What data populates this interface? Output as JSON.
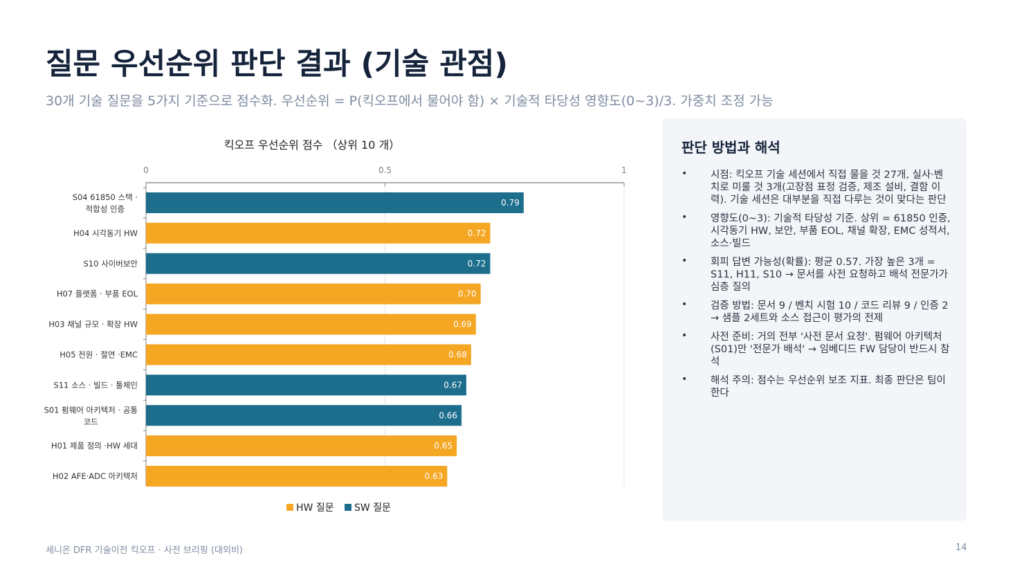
{
  "title": "질문 우선순위 판단 결과 (기술 관점)",
  "subtitle": "30개 기술 질문을 5가지 기준으로 점수화. 우선순위 = P(킥오프에서 물어야 함) × 기술적 타당성 영향도(0~3)/3. 가중치 조정 가능",
  "colors": {
    "hw": "#f5a623",
    "sw": "#1c6e8c"
  },
  "chart_data": {
    "type": "bar",
    "orientation": "horizontal",
    "title": "킥오프 우선순위 점수 （상위 10 개）",
    "xlim": [
      0,
      1
    ],
    "xticks": [
      "0",
      "0.5",
      "1"
    ],
    "grid": true,
    "legend_position": "bottom",
    "legend": [
      {
        "label": "HW 질문",
        "color": "#f5a623"
      },
      {
        "label": "SW 질문",
        "color": "#1c6e8c"
      }
    ],
    "categories": [
      "S04 61850 스택 · 적합성 인증",
      "H04 시각동기 HW",
      "S10 사이버보안",
      "H07 플랫폼 · 부품 EOL",
      "H03 채널 규모 · 확장 HW",
      "H05 전원 · 절연 ·EMC",
      "S11 소스 · 빌드 · 툴체인",
      "S01 펌웨어 아키텍처 · 공통 코드",
      "H01 제품 정의 ·HW 세대",
      "H02 AFE·ADC 아키텍처"
    ],
    "bars": [
      {
        "category": "S04 61850 스택 · 적합성 인증",
        "value": 0.79,
        "label": "0.79",
        "group": "SW"
      },
      {
        "category": "H04 시각동기 HW",
        "value": 0.72,
        "label": "0.72",
        "group": "HW"
      },
      {
        "category": "S10 사이버보안",
        "value": 0.72,
        "label": "0.72",
        "group": "SW"
      },
      {
        "category": "H07 플랫폼 · 부품 EOL",
        "value": 0.7,
        "label": "0.70",
        "group": "HW"
      },
      {
        "category": "H03 채널 규모 · 확장 HW",
        "value": 0.69,
        "label": "0.69",
        "group": "HW"
      },
      {
        "category": "H05 전원 · 절연 ·EMC",
        "value": 0.68,
        "label": "0.68",
        "group": "HW"
      },
      {
        "category": "S11 소스 · 빌드 · 툴체인",
        "value": 0.67,
        "label": "0.67",
        "group": "SW"
      },
      {
        "category": "S01 펌웨어 아키텍처 · 공통 코드",
        "value": 0.66,
        "label": "0.66",
        "group": "SW"
      },
      {
        "category": "H01 제품 정의 ·HW 세대",
        "value": 0.65,
        "label": "0.65",
        "group": "HW"
      },
      {
        "category": "H02 AFE·ADC 아키텍처",
        "value": 0.63,
        "label": "0.63",
        "group": "HW"
      }
    ]
  },
  "panel": {
    "title": "판단 방법과 해석",
    "items": [
      "시점: 킥오프 기술 세션에서 직접 물을 것 27개, 실사·벤치로 미룰 것 3개(고장점 표정 검증, 제조 설비, 결함 이력). 기술 세션은 대부분을 직접 다루는 것이 맞다는 판단",
      "영향도(0~3): 기술적 타당성 기준. 상위 = 61850 인증, 시각동기 HW, 보안, 부품 EOL, 채널 확장, EMC 성적서, 소스·빌드",
      "회피 답변 가능성(확률): 평균 0.57. 가장 높은 3개 = S11, H11, S10 → 문서를 사전 요청하고 배석 전문가가 심층 질의",
      "검증 방법: 문서 9 / 벤치 시험 10 / 코드 리뷰 9 / 인증 2 → 샘플 2세트와 소스 접근이 평가의 전제",
      "사전 준비: 거의 전부 '사전 문서 요청'. 펌웨어 아키텍처(S01)만 '전문가 배석' → 임베디드 FW 담당이 반드시 참석",
      "해석 주의: 점수는 우선순위 보조 지표. 최종 판단은 팀이 한다"
    ],
    "bullet": "•"
  },
  "footer": "세니온 DFR 기술이전 킥오프 · 사전 브리핑 (대외비)",
  "page_number": "14"
}
